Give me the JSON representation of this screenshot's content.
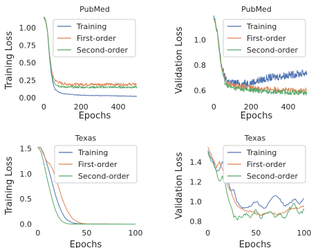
{
  "colors": {
    "Training": "#4c72b0",
    "First-order": "#dd8452",
    "Second-order": "#55a868"
  },
  "chart_data": [
    {
      "type": "line",
      "title": "PubMed",
      "xlabel": "Epochs",
      "ylabel": "Training Loss",
      "xlim": [
        -20,
        500
      ],
      "ylim": [
        -0.02,
        1.15
      ],
      "xticks": [
        0,
        200,
        400
      ],
      "yticks": [
        0.0,
        0.25,
        0.5,
        0.75,
        1.0
      ],
      "ytick_labels": [
        "0.00",
        "0.25",
        "0.50",
        "0.75",
        "1.00"
      ],
      "legend": "top-right",
      "grid": false,
      "series": [
        {
          "name": "Training",
          "noise": 0.004,
          "x": [
            0,
            10,
            20,
            30,
            40,
            50,
            60,
            80,
            100,
            150,
            200,
            300,
            400,
            500
          ],
          "y": [
            1.15,
            1.1,
            0.95,
            0.6,
            0.35,
            0.2,
            0.12,
            0.08,
            0.06,
            0.045,
            0.035,
            0.03,
            0.025,
            0.02
          ]
        },
        {
          "name": "First-order",
          "noise": 0.02,
          "x": [
            0,
            10,
            20,
            30,
            40,
            50,
            60,
            80,
            100,
            150,
            200,
            300,
            400,
            500
          ],
          "y": [
            1.15,
            1.1,
            0.95,
            0.65,
            0.42,
            0.3,
            0.25,
            0.22,
            0.2,
            0.19,
            0.19,
            0.19,
            0.19,
            0.19
          ]
        },
        {
          "name": "Second-order",
          "noise": 0.015,
          "x": [
            0,
            10,
            20,
            30,
            40,
            50,
            60,
            80,
            100,
            150,
            200,
            300,
            400,
            500
          ],
          "y": [
            1.15,
            1.1,
            0.95,
            0.62,
            0.38,
            0.25,
            0.2,
            0.17,
            0.155,
            0.15,
            0.15,
            0.15,
            0.15,
            0.15
          ]
        }
      ]
    },
    {
      "type": "line",
      "title": "PubMed",
      "xlabel": "Epochs",
      "ylabel": "Validation Loss",
      "xlim": [
        -20,
        500
      ],
      "ylim": [
        0.53,
        1.18
      ],
      "xticks": [
        0,
        200,
        400
      ],
      "yticks": [
        0.6,
        0.8,
        1.0
      ],
      "ytick_labels": [
        "0.6",
        "0.8",
        "1.0"
      ],
      "legend": "top-right",
      "grid": false,
      "series": [
        {
          "name": "Training",
          "noise": 0.03,
          "x": [
            0,
            20,
            40,
            60,
            80,
            100,
            150,
            200,
            250,
            300,
            350,
            400,
            450,
            500
          ],
          "y": [
            1.18,
            1.05,
            0.8,
            0.7,
            0.67,
            0.66,
            0.65,
            0.66,
            0.68,
            0.7,
            0.71,
            0.72,
            0.73,
            0.74
          ]
        },
        {
          "name": "First-order",
          "noise": 0.02,
          "x": [
            0,
            20,
            40,
            60,
            80,
            100,
            150,
            200,
            300,
            400,
            500
          ],
          "y": [
            1.18,
            1.05,
            0.8,
            0.68,
            0.65,
            0.64,
            0.63,
            0.62,
            0.61,
            0.6,
            0.6
          ]
        },
        {
          "name": "Second-order",
          "noise": 0.02,
          "x": [
            0,
            20,
            40,
            60,
            80,
            100,
            150,
            200,
            300,
            400,
            500
          ],
          "y": [
            1.18,
            1.05,
            0.78,
            0.66,
            0.63,
            0.62,
            0.61,
            0.6,
            0.59,
            0.585,
            0.58
          ]
        }
      ]
    },
    {
      "type": "line",
      "title": "Texas",
      "xlabel": "Epochs",
      "ylabel": "Training Loss",
      "xlim": [
        -2,
        100
      ],
      "ylim": [
        -0.02,
        1.55
      ],
      "xticks": [
        0,
        50,
        100
      ],
      "yticks": [
        0.0,
        0.5,
        1.0,
        1.5
      ],
      "ytick_labels": [
        "0.0",
        "0.5",
        "1.0",
        "1.5"
      ],
      "legend": "top-right",
      "grid": false,
      "series": [
        {
          "name": "Training",
          "noise": 0,
          "x": [
            0,
            3,
            6,
            9,
            12,
            15,
            18,
            21,
            24,
            27,
            30,
            35,
            40,
            45,
            50,
            100
          ],
          "y": [
            1.53,
            1.52,
            1.4,
            1.22,
            1.02,
            0.8,
            0.58,
            0.4,
            0.26,
            0.15,
            0.08,
            0.03,
            0.01,
            0.005,
            0.0,
            0.0
          ]
        },
        {
          "name": "First-order",
          "noise": 0,
          "x": [
            0,
            3,
            6,
            9,
            12,
            15,
            18,
            21,
            24,
            27,
            30,
            35,
            40,
            45,
            50,
            100
          ],
          "y": [
            1.53,
            1.51,
            1.38,
            1.25,
            1.2,
            1.1,
            0.93,
            0.75,
            0.56,
            0.4,
            0.27,
            0.12,
            0.05,
            0.015,
            0.005,
            0.0
          ]
        },
        {
          "name": "Second-order",
          "noise": 0,
          "x": [
            0,
            3,
            6,
            9,
            12,
            15,
            18,
            21,
            24,
            27,
            30,
            35,
            40,
            100
          ],
          "y": [
            1.53,
            1.45,
            1.22,
            0.95,
            0.7,
            0.47,
            0.28,
            0.15,
            0.07,
            0.03,
            0.01,
            0.0,
            0.0,
            0.0
          ]
        }
      ]
    },
    {
      "type": "line",
      "title": "Texas",
      "xlabel": "Epochs",
      "ylabel": "Validation Loss",
      "xlim": [
        -2,
        100
      ],
      "ylim": [
        0.76,
        1.56
      ],
      "xticks": [
        0,
        50,
        100
      ],
      "yticks": [
        0.8,
        1.0,
        1.2,
        1.4
      ],
      "ytick_labels": [
        "0.8",
        "1.0",
        "1.2",
        "1.4"
      ],
      "legend": "top-right",
      "grid": false,
      "series": [
        {
          "name": "Training",
          "noise": 0.01,
          "x": [
            0,
            3,
            6,
            9,
            12,
            15,
            18,
            21,
            24,
            27,
            30,
            35,
            40,
            45,
            50,
            55,
            60,
            65,
            70,
            75,
            80,
            85,
            90,
            95,
            100
          ],
          "y": [
            1.52,
            1.45,
            1.4,
            1.3,
            1.33,
            1.4,
            1.32,
            1.2,
            1.1,
            1.12,
            1.0,
            0.94,
            0.93,
            0.96,
            1.0,
            0.95,
            0.93,
            1.02,
            1.06,
            1.02,
            0.95,
            0.98,
            1.03,
            0.98,
            1.03
          ]
        },
        {
          "name": "First-order",
          "noise": 0.01,
          "x": [
            0,
            3,
            6,
            9,
            12,
            15,
            18,
            21,
            24,
            27,
            30,
            35,
            40,
            45,
            50,
            55,
            60,
            65,
            70,
            75,
            80,
            85,
            90,
            95,
            100
          ],
          "y": [
            1.55,
            1.48,
            1.42,
            1.35,
            1.4,
            1.34,
            1.25,
            1.15,
            1.1,
            1.02,
            0.96,
            0.93,
            0.9,
            0.9,
            0.88,
            0.86,
            0.88,
            0.9,
            0.87,
            0.88,
            0.9,
            0.92,
            0.93,
            0.94,
            0.95
          ]
        },
        {
          "name": "Second-order",
          "noise": 0.015,
          "x": [
            0,
            3,
            6,
            9,
            12,
            15,
            18,
            21,
            24,
            27,
            30,
            35,
            40,
            45,
            50,
            55,
            60,
            65,
            70,
            75,
            80,
            85,
            90,
            95,
            100
          ],
          "y": [
            1.5,
            1.42,
            1.38,
            1.3,
            1.2,
            1.25,
            1.18,
            1.05,
            0.95,
            0.85,
            0.82,
            0.85,
            0.88,
            0.84,
            0.92,
            0.83,
            0.88,
            0.9,
            0.84,
            0.88,
            0.82,
            0.93,
            0.98,
            0.86,
            0.92
          ]
        }
      ]
    }
  ]
}
